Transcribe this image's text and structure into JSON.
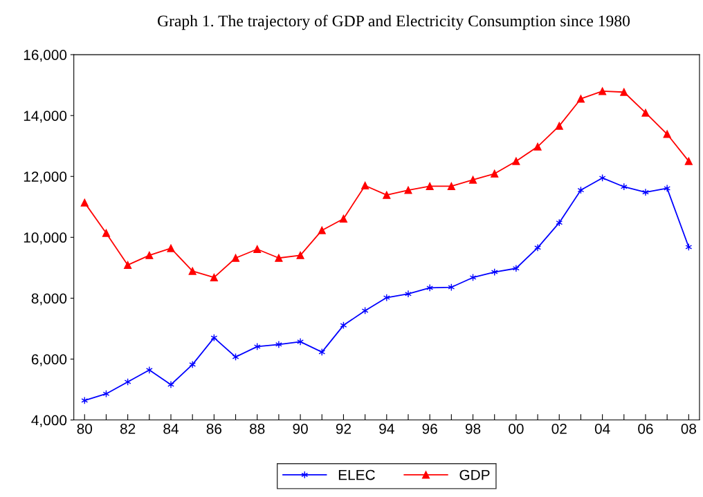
{
  "chart_data": {
    "type": "line",
    "title": "Graph 1. The trajectory of GDP and Electricity Consumption since 1980",
    "categories": [
      "80",
      null,
      "82",
      null,
      "84",
      null,
      "86",
      null,
      "88",
      null,
      "90",
      null,
      "92",
      null,
      "94",
      null,
      "96",
      null,
      "98",
      null,
      "00",
      null,
      "02",
      null,
      "04",
      null,
      "06",
      null,
      "08"
    ],
    "series": [
      {
        "name": "ELEC",
        "color": "#0000ff",
        "marker": "cross",
        "values": [
          4640,
          4860,
          5250,
          5640,
          5160,
          5820,
          6700,
          6070,
          6410,
          6480,
          6570,
          6230,
          7110,
          7590,
          8020,
          8140,
          8340,
          8360,
          8680,
          8860,
          8980,
          9660,
          10480,
          11550,
          11950,
          11660,
          11480,
          11610,
          9680
        ]
      },
      {
        "name": "GDP",
        "color": "#ff0000",
        "marker": "triangle",
        "values": [
          11140,
          10140,
          9090,
          9410,
          9640,
          8890,
          8680,
          9320,
          9610,
          9320,
          9410,
          10230,
          10610,
          11700,
          11390,
          11550,
          11680,
          11680,
          11890,
          12090,
          12500,
          12980,
          13660,
          14550,
          14800,
          14770,
          14090,
          13390,
          12500
        ]
      }
    ],
    "ylim": [
      4000,
      16000
    ],
    "yticks": [
      {
        "value": 4000,
        "label": "4,000"
      },
      {
        "value": 6000,
        "label": "6,000"
      },
      {
        "value": 8000,
        "label": "8,000"
      },
      {
        "value": 10000,
        "label": "10,000"
      },
      {
        "value": 12000,
        "label": "12,000"
      },
      {
        "value": 14000,
        "label": "14,000"
      },
      {
        "value": 16000,
        "label": "16,000"
      }
    ],
    "grid": false,
    "legend": "bottom",
    "line_style": "solid"
  }
}
